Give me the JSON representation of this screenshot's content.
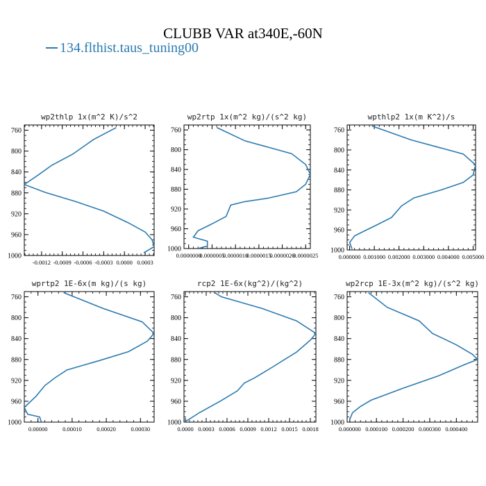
{
  "title": "CLUBB VAR at340E,-60N",
  "legend": {
    "label": "134.flthist.taus_tuning00",
    "color": "#2a7ab0"
  },
  "chart_data": [
    {
      "type": "line",
      "title": "wp2thlp  1x(m^2 K)/s^2",
      "xlim": [
        -0.00145,
        0.00043
      ],
      "ylim": [
        1000,
        750
      ],
      "x_ticks": [
        -0.0012,
        -0.0009,
        -0.0006,
        -0.0003,
        0.0,
        0.0003
      ],
      "x_tick_labels": [
        "-0.0012",
        "-0.0009",
        "-0.0006",
        "-0.0003",
        "0.0000",
        "0.0003"
      ],
      "y_ticks": [
        760,
        800,
        840,
        880,
        920,
        960,
        1000
      ],
      "y_tick_labels": [
        "760",
        "800",
        "840",
        "880",
        "920",
        "960",
        "1000"
      ],
      "series": [
        {
          "name": "134.flthist.taus_tuning00",
          "x": [
            -0.00012,
            -0.00045,
            -0.00075,
            -0.00105,
            -0.00125,
            -0.00145,
            -0.00115,
            -0.0007,
            -0.0003,
            5e-05,
            0.0003,
            0.0004,
            0.00043,
            0.00028
          ],
          "y": [
            755,
            778,
            806,
            827,
            846,
            864,
            879,
            897,
            915,
            937,
            955,
            970,
            983,
            995
          ]
        }
      ]
    },
    {
      "type": "line",
      "title": "wp2rtp  1x(m^2 kg)/(s^2 kg)",
      "xlim": [
        -1e-07,
        2.6e-06
      ],
      "ylim": [
        1000,
        750
      ],
      "x_ticks": [
        0.0,
        5e-07,
        1e-06,
        1.5e-06,
        2e-06,
        2.5e-06
      ],
      "x_tick_labels": [
        "0.0000000",
        "0.0000005",
        "0.0000010",
        "0.0000015",
        "0.0000020",
        "0.0000025"
      ],
      "y_ticks": [
        760,
        800,
        840,
        880,
        920,
        960,
        1000
      ],
      "y_tick_labels": [
        "760",
        "800",
        "840",
        "880",
        "920",
        "960",
        "1000"
      ],
      "series": [
        {
          "name": "134.flthist.taus_tuning00",
          "x": [
            6e-07,
            1.2e-06,
            2.2e-06,
            2.5e-06,
            2.6e-06,
            2.5e-06,
            2.3e-06,
            1.7e-06,
            1.2e-06,
            9e-07,
            8e-07,
            5e-07,
            2e-07,
            1e-07,
            4e-07,
            4e-07,
            2e-07
          ],
          "y": [
            755,
            782,
            808,
            830,
            850,
            870,
            885,
            898,
            905,
            912,
            935,
            950,
            964,
            977,
            985,
            995,
            1000
          ]
        }
      ]
    },
    {
      "type": "line",
      "title": "wpthlp2  1x(m K^2)/s",
      "xlim": [
        -0.0001,
        0.0051
      ],
      "ylim": [
        1000,
        750
      ],
      "x_ticks": [
        0.0,
        0.001,
        0.002,
        0.003,
        0.004,
        0.005
      ],
      "x_tick_labels": [
        "0.000000",
        "0.001000",
        "0.002000",
        "0.003000",
        "0.004000",
        "0.005000"
      ],
      "y_ticks": [
        760,
        800,
        840,
        880,
        920,
        960,
        1000
      ],
      "y_tick_labels": [
        "760",
        "800",
        "840",
        "880",
        "920",
        "960",
        "1000"
      ],
      "series": [
        {
          "name": "134.flthist.taus_tuning00",
          "x": [
            0.0009,
            0.0025,
            0.0046,
            0.0051,
            0.005,
            0.0046,
            0.0037,
            0.0026,
            0.0021,
            0.0017,
            0.0011,
            0.0006,
            0.0002,
            0.0,
            0.0001
          ],
          "y": [
            752,
            780,
            808,
            830,
            850,
            865,
            880,
            896,
            912,
            935,
            950,
            962,
            972,
            985,
            998
          ]
        }
      ]
    },
    {
      "type": "line",
      "title": "wprtp2  1E-6x(m kg)/(s kg)",
      "xlim": [
        -4e-05,
        0.00034
      ],
      "ylim": [
        1000,
        750
      ],
      "x_ticks": [
        0.0,
        0.0001,
        0.0002,
        0.0003
      ],
      "x_tick_labels": [
        "0.00000",
        "0.00010",
        "0.00020",
        "0.00030"
      ],
      "y_ticks": [
        760,
        800,
        840,
        880,
        920,
        960,
        1000
      ],
      "y_tick_labels": [
        "760",
        "800",
        "840",
        "880",
        "920",
        "960",
        "1000"
      ],
      "series": [
        {
          "name": "134.flthist.taus_tuning00",
          "x": [
            7.5e-05,
            0.00019,
            0.000305,
            0.00034,
            0.00032,
            0.000265,
            0.00018,
            8.5e-05,
            5e-05,
            2e-05,
            -5e-06,
            -4e-05,
            -3e-05,
            5e-06,
            1e-05
          ],
          "y": [
            752,
            782,
            808,
            830,
            845,
            865,
            882,
            900,
            915,
            930,
            950,
            972,
            985,
            990,
            1000
          ]
        }
      ]
    },
    {
      "type": "line",
      "title": "rcp2  1E-6x(kg^2)/(kg^2)",
      "xlim": [
        -2e-05,
        0.00188
      ],
      "ylim": [
        1000,
        750
      ],
      "x_ticks": [
        0.0,
        0.0003,
        0.0006,
        0.0009,
        0.0012,
        0.0015,
        0.0018
      ],
      "x_tick_labels": [
        "0.0000",
        "0.0003",
        "0.0006",
        "0.0009",
        "0.0012",
        "0.0015",
        "0.0018"
      ],
      "y_ticks": [
        760,
        800,
        840,
        880,
        920,
        960,
        1000
      ],
      "y_tick_labels": [
        "760",
        "800",
        "840",
        "880",
        "920",
        "960",
        "1000"
      ],
      "series": [
        {
          "name": "134.flthist.taus_tuning00",
          "x": [
            0.00042,
            0.00052,
            0.0011,
            0.0016,
            0.00188,
            0.0018,
            0.0016,
            0.00125,
            0.001,
            0.00085,
            0.00075,
            0.0005,
            0.0002,
            5e-05,
            -2e-05
          ],
          "y": [
            752,
            760,
            782,
            806,
            830,
            843,
            866,
            895,
            915,
            925,
            940,
            960,
            982,
            995,
            1000
          ]
        }
      ]
    },
    {
      "type": "line",
      "title": "wp2rcp  1E-3x(m^2 kg)/(s^2 kg)",
      "xlim": [
        -1e-05,
        0.00048
      ],
      "ylim": [
        1000,
        750
      ],
      "x_ticks": [
        0.0,
        0.0001,
        0.0002,
        0.0003,
        0.0004
      ],
      "x_tick_labels": [
        "0.000000",
        "0.000100",
        "0.000200",
        "0.000300",
        "0.000400"
      ],
      "y_ticks": [
        760,
        800,
        840,
        880,
        920,
        960,
        1000
      ],
      "y_tick_labels": [
        "760",
        "800",
        "840",
        "880",
        "920",
        "960",
        "1000"
      ],
      "series": [
        {
          "name": "134.flthist.taus_tuning00",
          "x": [
            7e-05,
            0.00014,
            0.00026,
            0.00031,
            0.0004,
            0.00046,
            0.00048,
            0.00043,
            0.00033,
            0.0002,
            8e-05,
            4e-05,
            1e-05,
            0.0
          ],
          "y": [
            752,
            780,
            806,
            830,
            852,
            870,
            880,
            890,
            912,
            935,
            958,
            970,
            982,
            995
          ]
        }
      ]
    }
  ]
}
